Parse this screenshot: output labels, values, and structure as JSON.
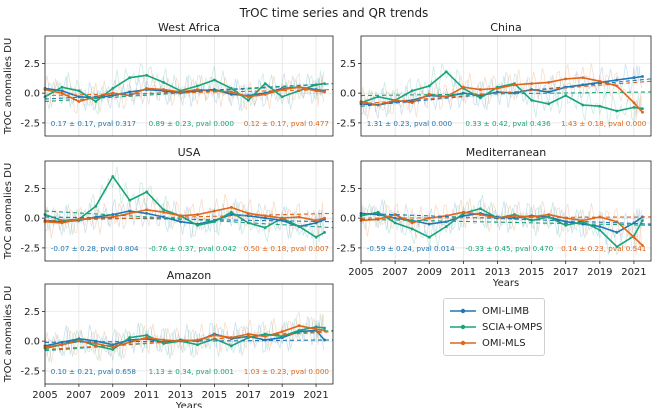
{
  "figure": {
    "title": "TrOC time series and QR trends"
  },
  "colors": {
    "OMI-LIMB": "#1f77b4",
    "SCIA+OMPS": "#1aa37a",
    "OMI-MLS": "#e0661a"
  },
  "chart_data": [
    {
      "type": "line",
      "title": "West Africa",
      "ylabel": "TrOC anomalies DU",
      "xlabel": "",
      "xlim": [
        2005,
        2022
      ],
      "ylim": [
        -3.6,
        4.8
      ],
      "yticks": [
        -2.5,
        0.0,
        2.5
      ],
      "xticks": [],
      "grid": true,
      "series": [
        {
          "name": "OMI-LIMB",
          "x": [
            2005.0,
            2006.0,
            2007.0,
            2008.0,
            2009.0,
            2010.0,
            2011.0,
            2012.0,
            2013.0,
            2014.0,
            2015.0,
            2016.0,
            2017.0,
            2018.0,
            2019.0,
            2020.0,
            2021.0,
            2021.5
          ],
          "values": [
            0.4,
            0.2,
            -0.3,
            -0.4,
            -0.2,
            0.1,
            0.3,
            0.2,
            0.0,
            0.2,
            0.3,
            -0.1,
            -0.2,
            0.0,
            0.4,
            0.5,
            0.3,
            0.2
          ],
          "trend": [
            -0.5,
            0.8
          ],
          "annotation": "0.17 ± 0.17, pval 0.317"
        },
        {
          "name": "SCIA+OMPS",
          "x": [
            2005.0,
            2006.0,
            2007.0,
            2008.0,
            2009.0,
            2010.0,
            2011.0,
            2012.0,
            2013.0,
            2014.0,
            2015.0,
            2016.0,
            2017.0,
            2018.0,
            2019.0,
            2020.0,
            2021.0,
            2021.5
          ],
          "values": [
            -0.3,
            0.5,
            0.2,
            -0.7,
            0.4,
            1.3,
            1.5,
            0.9,
            0.2,
            0.6,
            1.1,
            0.4,
            -0.6,
            0.8,
            -0.3,
            0.2,
            0.7,
            0.8
          ],
          "trend": [
            -0.7,
            0.8
          ],
          "annotation": "0.89 ± 0.23, pval 0.000"
        },
        {
          "name": "OMI-MLS",
          "x": [
            2005.0,
            2006.0,
            2007.0,
            2008.0,
            2009.0,
            2010.0,
            2011.0,
            2012.0,
            2013.0,
            2014.0,
            2015.0,
            2016.0,
            2017.0,
            2018.0,
            2019.0,
            2020.0,
            2021.0,
            2021.5
          ],
          "values": [
            0.3,
            0.0,
            -0.7,
            -0.3,
            0.0,
            -0.2,
            0.4,
            0.3,
            0.1,
            0.3,
            0.2,
            0.1,
            -0.3,
            -0.1,
            0.3,
            0.5,
            0.2,
            0.1
          ],
          "trend": [
            -0.2,
            0.3
          ],
          "annotation": "0.12 ± 0.17, pval 0.477"
        }
      ]
    },
    {
      "type": "line",
      "title": "China",
      "ylabel": "",
      "xlabel": "",
      "xlim": [
        2005,
        2022
      ],
      "ylim": [
        -3.6,
        4.8
      ],
      "yticks": [
        -2.5,
        0.0,
        2.5
      ],
      "xticks": [],
      "grid": true,
      "series": [
        {
          "name": "OMI-LIMB",
          "x": [
            2005.0,
            2006.0,
            2007.0,
            2008.0,
            2009.0,
            2010.0,
            2011.0,
            2012.0,
            2013.0,
            2014.0,
            2015.0,
            2016.0,
            2017.0,
            2018.0,
            2019.0,
            2020.0,
            2021.0,
            2021.5
          ],
          "values": [
            -0.9,
            -1.0,
            -0.7,
            -0.6,
            -0.2,
            -0.3,
            0.0,
            -0.2,
            0.1,
            0.0,
            0.3,
            0.1,
            0.5,
            0.7,
            0.9,
            1.1,
            1.3,
            1.4
          ],
          "trend": [
            -1.1,
            1.2
          ],
          "annotation": "1.31 ± 0.23, pval 0.000"
        },
        {
          "name": "SCIA+OMPS",
          "x": [
            2005.0,
            2006.0,
            2007.0,
            2008.0,
            2009.0,
            2010.0,
            2011.0,
            2012.0,
            2013.0,
            2014.0,
            2015.0,
            2016.0,
            2017.0,
            2018.0,
            2019.0,
            2020.0,
            2021.0,
            2021.5
          ],
          "values": [
            -0.8,
            -0.3,
            -0.6,
            0.2,
            0.6,
            1.8,
            0.4,
            -0.4,
            0.5,
            0.8,
            -0.6,
            -0.9,
            -0.2,
            -1.0,
            -1.1,
            -1.5,
            -1.2,
            -1.3
          ],
          "trend": [
            -0.2,
            0.1
          ],
          "annotation": "0.33 ± 0.42, pval 0.436"
        },
        {
          "name": "OMI-MLS",
          "x": [
            2005.0,
            2006.0,
            2007.0,
            2008.0,
            2009.0,
            2010.0,
            2011.0,
            2012.0,
            2013.0,
            2014.0,
            2015.0,
            2016.0,
            2017.0,
            2018.0,
            2019.0,
            2020.0,
            2021.0,
            2021.5
          ],
          "values": [
            -0.7,
            -1.0,
            -0.6,
            -0.8,
            -0.1,
            -0.3,
            0.5,
            0.3,
            0.4,
            0.7,
            0.8,
            0.9,
            1.2,
            1.3,
            1.0,
            0.6,
            -0.8,
            -1.6
          ],
          "trend": [
            -0.9,
            1.0
          ],
          "annotation": "1.43 ± 0.18, pval 0.000"
        }
      ]
    },
    {
      "type": "line",
      "title": "USA",
      "ylabel": "TrOC anomalies DU",
      "xlabel": "",
      "xlim": [
        2005,
        2022
      ],
      "ylim": [
        -3.6,
        4.8
      ],
      "yticks": [
        -2.5,
        0.0,
        2.5
      ],
      "xticks": [],
      "grid": true,
      "series": [
        {
          "name": "OMI-LIMB",
          "x": [
            2005.0,
            2006.0,
            2007.0,
            2008.0,
            2009.0,
            2010.0,
            2011.0,
            2012.0,
            2013.0,
            2014.0,
            2015.0,
            2016.0,
            2017.0,
            2018.0,
            2019.0,
            2020.0,
            2021.0,
            2021.5
          ],
          "values": [
            -0.2,
            -0.3,
            -0.2,
            0.1,
            0.3,
            0.6,
            0.4,
            0.1,
            -0.3,
            -0.5,
            -0.2,
            0.3,
            0.2,
            0.0,
            -0.2,
            -0.7,
            -0.4,
            -0.1
          ],
          "trend": [
            0.1,
            -0.3
          ],
          "annotation": "-0.07 ± 0.28, pval 0.804"
        },
        {
          "name": "SCIA+OMPS",
          "x": [
            2005.0,
            2006.0,
            2007.0,
            2008.0,
            2009.0,
            2010.0,
            2011.0,
            2012.0,
            2013.0,
            2014.0,
            2015.0,
            2016.0,
            2017.0,
            2018.0,
            2019.0,
            2020.0,
            2021.0,
            2021.5
          ],
          "values": [
            0.3,
            -0.2,
            -0.1,
            1.0,
            3.5,
            1.5,
            2.2,
            0.7,
            0.2,
            -0.6,
            -0.3,
            0.5,
            -0.4,
            -0.8,
            0.0,
            -0.7,
            -1.6,
            -1.2
          ],
          "trend": [
            0.6,
            -0.8
          ],
          "annotation": "-0.76 ± 0.37, pval 0.042"
        },
        {
          "name": "OMI-MLS",
          "x": [
            2005.0,
            2006.0,
            2007.0,
            2008.0,
            2009.0,
            2010.0,
            2011.0,
            2012.0,
            2013.0,
            2014.0,
            2015.0,
            2016.0,
            2017.0,
            2018.0,
            2019.0,
            2020.0,
            2021.0,
            2021.5
          ],
          "values": [
            -0.3,
            -0.4,
            -0.1,
            0.0,
            0.1,
            0.4,
            0.7,
            0.5,
            0.2,
            0.3,
            0.6,
            0.9,
            0.4,
            0.2,
            0.0,
            0.1,
            -0.2,
            0.0
          ],
          "trend": [
            -0.2,
            0.4
          ],
          "annotation": "0.50 ± 0.18, pval 0.007"
        }
      ]
    },
    {
      "type": "line",
      "title": "Mediterranean",
      "ylabel": "",
      "xlabel": "Years",
      "xlim": [
        2005,
        2022
      ],
      "ylim": [
        -3.6,
        4.8
      ],
      "yticks": [
        -2.5,
        0.0,
        2.5
      ],
      "xticks": [
        2005,
        2007,
        2009,
        2011,
        2013,
        2015,
        2017,
        2019,
        2021
      ],
      "grid": true,
      "series": [
        {
          "name": "OMI-LIMB",
          "x": [
            2005.0,
            2006.0,
            2007.0,
            2008.0,
            2009.0,
            2010.0,
            2011.0,
            2012.0,
            2013.0,
            2014.0,
            2015.0,
            2016.0,
            2017.0,
            2018.0,
            2019.0,
            2020.0,
            2021.0,
            2021.5
          ],
          "values": [
            0.4,
            0.3,
            0.0,
            -0.2,
            -0.5,
            -0.3,
            0.2,
            0.4,
            0.1,
            0.0,
            0.2,
            0.1,
            -0.3,
            -0.5,
            -0.7,
            -1.2,
            -0.4,
            0.1
          ],
          "trend": [
            0.4,
            -0.5
          ],
          "annotation": "-0.59 ± 0.24, pval 0.014"
        },
        {
          "name": "SCIA+OMPS",
          "x": [
            2005.0,
            2006.0,
            2007.0,
            2008.0,
            2009.0,
            2010.0,
            2011.0,
            2012.0,
            2013.0,
            2014.0,
            2015.0,
            2016.0,
            2017.0,
            2018.0,
            2019.0,
            2020.0,
            2021.0,
            2021.5
          ],
          "values": [
            0.2,
            0.5,
            -0.4,
            -0.9,
            -1.6,
            -0.7,
            0.4,
            0.8,
            0.0,
            0.3,
            -0.2,
            0.1,
            -0.6,
            -0.3,
            -1.0,
            -2.4,
            -1.5,
            -0.2
          ],
          "trend": [
            -0.1,
            -0.6
          ],
          "annotation": "-0.33 ± 0.45, pval 0.470"
        },
        {
          "name": "OMI-MLS",
          "x": [
            2005.0,
            2006.0,
            2007.0,
            2008.0,
            2009.0,
            2010.0,
            2011.0,
            2012.0,
            2013.0,
            2014.0,
            2015.0,
            2016.0,
            2017.0,
            2018.0,
            2019.0,
            2020.0,
            2021.0,
            2021.5
          ],
          "values": [
            -0.2,
            -0.1,
            0.3,
            -0.4,
            0.0,
            0.2,
            0.5,
            0.3,
            0.0,
            0.2,
            0.1,
            0.3,
            0.0,
            -0.2,
            0.1,
            -0.3,
            -1.6,
            -2.3
          ],
          "trend": [
            0.0,
            0.1
          ],
          "annotation": "0.14 ± 0.23, pval 0.541"
        }
      ]
    },
    {
      "type": "line",
      "title": "Amazon",
      "ylabel": "TrOC anomalies DU",
      "xlabel": "Years",
      "xlim": [
        2005,
        2022
      ],
      "ylim": [
        -3.6,
        4.8
      ],
      "yticks": [
        -2.5,
        0.0,
        2.5
      ],
      "xticks": [
        2005,
        2007,
        2009,
        2011,
        2013,
        2015,
        2017,
        2019,
        2021
      ],
      "grid": true,
      "series": [
        {
          "name": "OMI-LIMB",
          "x": [
            2005.0,
            2006.0,
            2007.0,
            2008.0,
            2009.0,
            2010.0,
            2011.0,
            2012.0,
            2013.0,
            2014.0,
            2015.0,
            2016.0,
            2017.0,
            2018.0,
            2019.0,
            2020.0,
            2021.0,
            2021.5
          ],
          "values": [
            -0.4,
            -0.1,
            0.2,
            0.0,
            -0.3,
            0.1,
            0.2,
            -0.1,
            0.1,
            0.0,
            0.6,
            0.2,
            0.4,
            0.1,
            0.3,
            0.8,
            0.9,
            0.1
          ],
          "trend": [
            -0.1,
            0.1
          ],
          "annotation": "0.10 ± 0.21, pval 0.658"
        },
        {
          "name": "SCIA+OMPS",
          "x": [
            2005.0,
            2006.0,
            2007.0,
            2008.0,
            2009.0,
            2010.0,
            2011.0,
            2012.0,
            2013.0,
            2014.0,
            2015.0,
            2016.0,
            2017.0,
            2018.0,
            2019.0,
            2020.0,
            2021.0,
            2021.5
          ],
          "values": [
            -0.6,
            -0.3,
            0.1,
            -0.4,
            -0.7,
            0.3,
            0.5,
            -0.2,
            0.0,
            -0.3,
            0.2,
            -0.4,
            0.3,
            0.6,
            0.4,
            0.9,
            1.2,
            1.1
          ],
          "trend": [
            -0.8,
            0.9
          ],
          "annotation": "1.13 ± 0.34, pval 0.001"
        },
        {
          "name": "OMI-MLS",
          "x": [
            2005.0,
            2006.0,
            2007.0,
            2008.0,
            2009.0,
            2010.0,
            2011.0,
            2012.0,
            2013.0,
            2014.0,
            2015.0,
            2016.0,
            2017.0,
            2018.0,
            2019.0,
            2020.0,
            2021.0,
            2021.5
          ],
          "values": [
            -0.5,
            -0.3,
            0.0,
            -0.2,
            -0.5,
            -0.1,
            0.3,
            0.1,
            0.0,
            0.1,
            0.5,
            0.3,
            0.6,
            0.4,
            0.8,
            1.3,
            1.0,
            0.9
          ],
          "trend": [
            -0.7,
            0.8
          ],
          "annotation": "1.03 ± 0.23, pval 0.000"
        }
      ]
    }
  ],
  "legend": {
    "entries": [
      "OMI-LIMB",
      "SCIA+OMPS",
      "OMI-MLS"
    ]
  }
}
